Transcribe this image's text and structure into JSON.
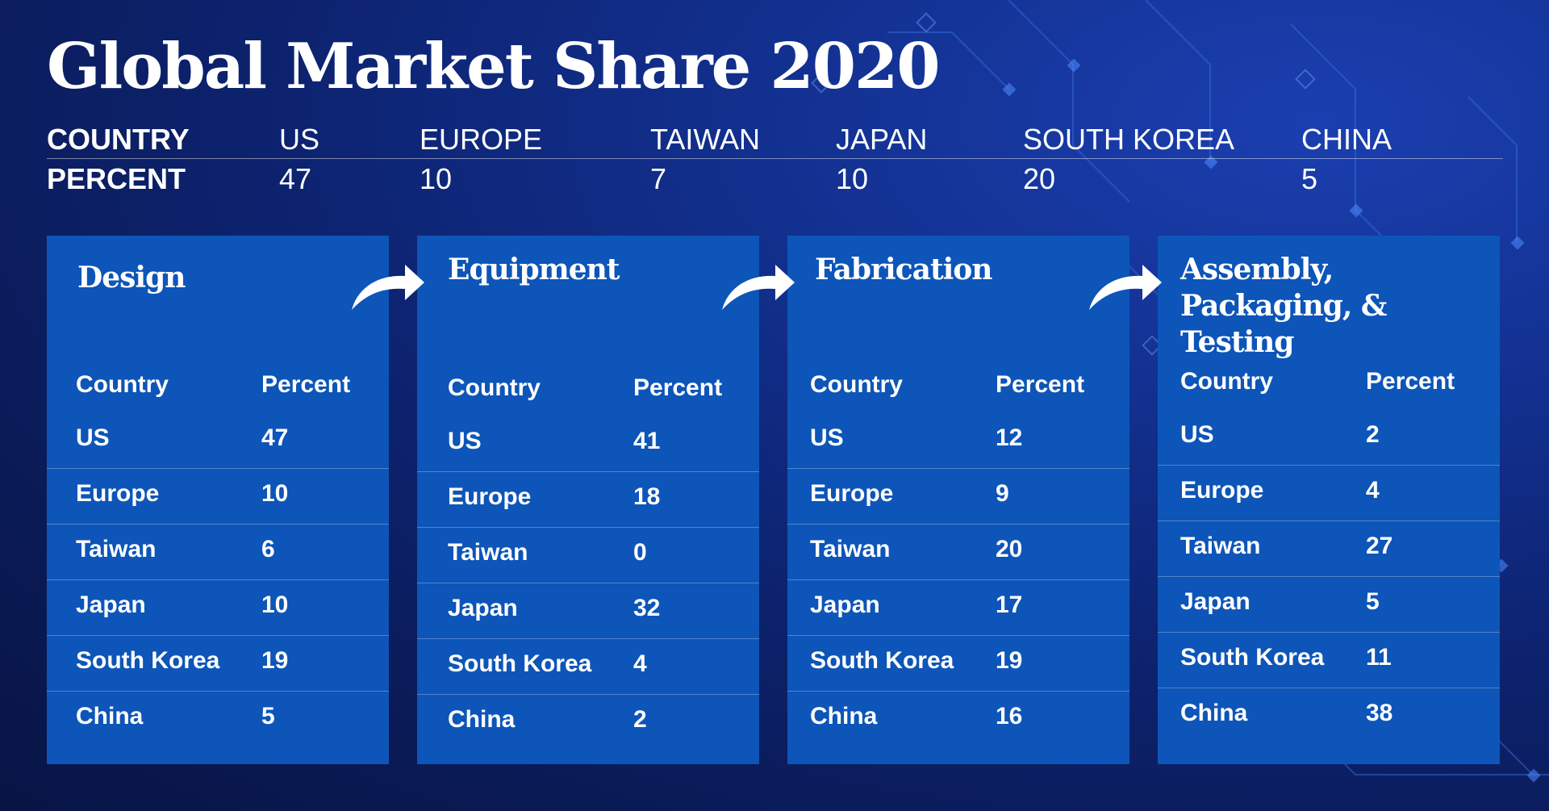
{
  "title": "Global Market Share 2020",
  "summary": {
    "header_label": "COUNTRY",
    "value_label": "PERCENT",
    "countries": [
      "US",
      "EUROPE",
      "TAIWAN",
      "JAPAN",
      "SOUTH KOREA",
      "CHINA"
    ],
    "percents": [
      "47",
      "10",
      "7",
      "10",
      "20",
      "5"
    ]
  },
  "panels": [
    {
      "title_lines": [
        "Design",
        ""
      ],
      "country_header": "Country",
      "percent_header": "Percent",
      "rows": [
        {
          "country": "US",
          "percent": "47"
        },
        {
          "country": "Europe",
          "percent": "10"
        },
        {
          "country": "Taiwan",
          "percent": "6"
        },
        {
          "country": "Japan",
          "percent": "10"
        },
        {
          "country": "South Korea",
          "percent": "19"
        },
        {
          "country": "China",
          "percent": "5"
        }
      ]
    },
    {
      "title_lines": [
        "Equipment",
        ""
      ],
      "country_header": "Country",
      "percent_header": "Percent",
      "rows": [
        {
          "country": "US",
          "percent": "41"
        },
        {
          "country": "Europe",
          "percent": "18"
        },
        {
          "country": "Taiwan",
          "percent": "0"
        },
        {
          "country": "Japan",
          "percent": "32"
        },
        {
          "country": "South Korea",
          "percent": "4"
        },
        {
          "country": "China",
          "percent": "2"
        }
      ]
    },
    {
      "title_lines": [
        "Fabrication",
        ""
      ],
      "country_header": "Country",
      "percent_header": "Percent",
      "rows": [
        {
          "country": "US",
          "percent": "12"
        },
        {
          "country": "Europe",
          "percent": "9"
        },
        {
          "country": "Taiwan",
          "percent": "20"
        },
        {
          "country": "Japan",
          "percent": "17"
        },
        {
          "country": "South Korea",
          "percent": "19"
        },
        {
          "country": "China",
          "percent": "16"
        }
      ]
    },
    {
      "title_lines": [
        "Assembly,",
        "Packaging, & Testing"
      ],
      "country_header": "Country",
      "percent_header": "Percent",
      "rows": [
        {
          "country": "US",
          "percent": "2"
        },
        {
          "country": "Europe",
          "percent": "4"
        },
        {
          "country": "Taiwan",
          "percent": "27"
        },
        {
          "country": "Japan",
          "percent": "5"
        },
        {
          "country": "South Korea",
          "percent": "11"
        },
        {
          "country": "China",
          "percent": "38"
        }
      ]
    }
  ],
  "colors": {
    "background": "#0d2370",
    "panel": "#0d55b8",
    "text": "#ffffff"
  },
  "icons": {
    "arrow": "curved-right-arrow-icon"
  }
}
